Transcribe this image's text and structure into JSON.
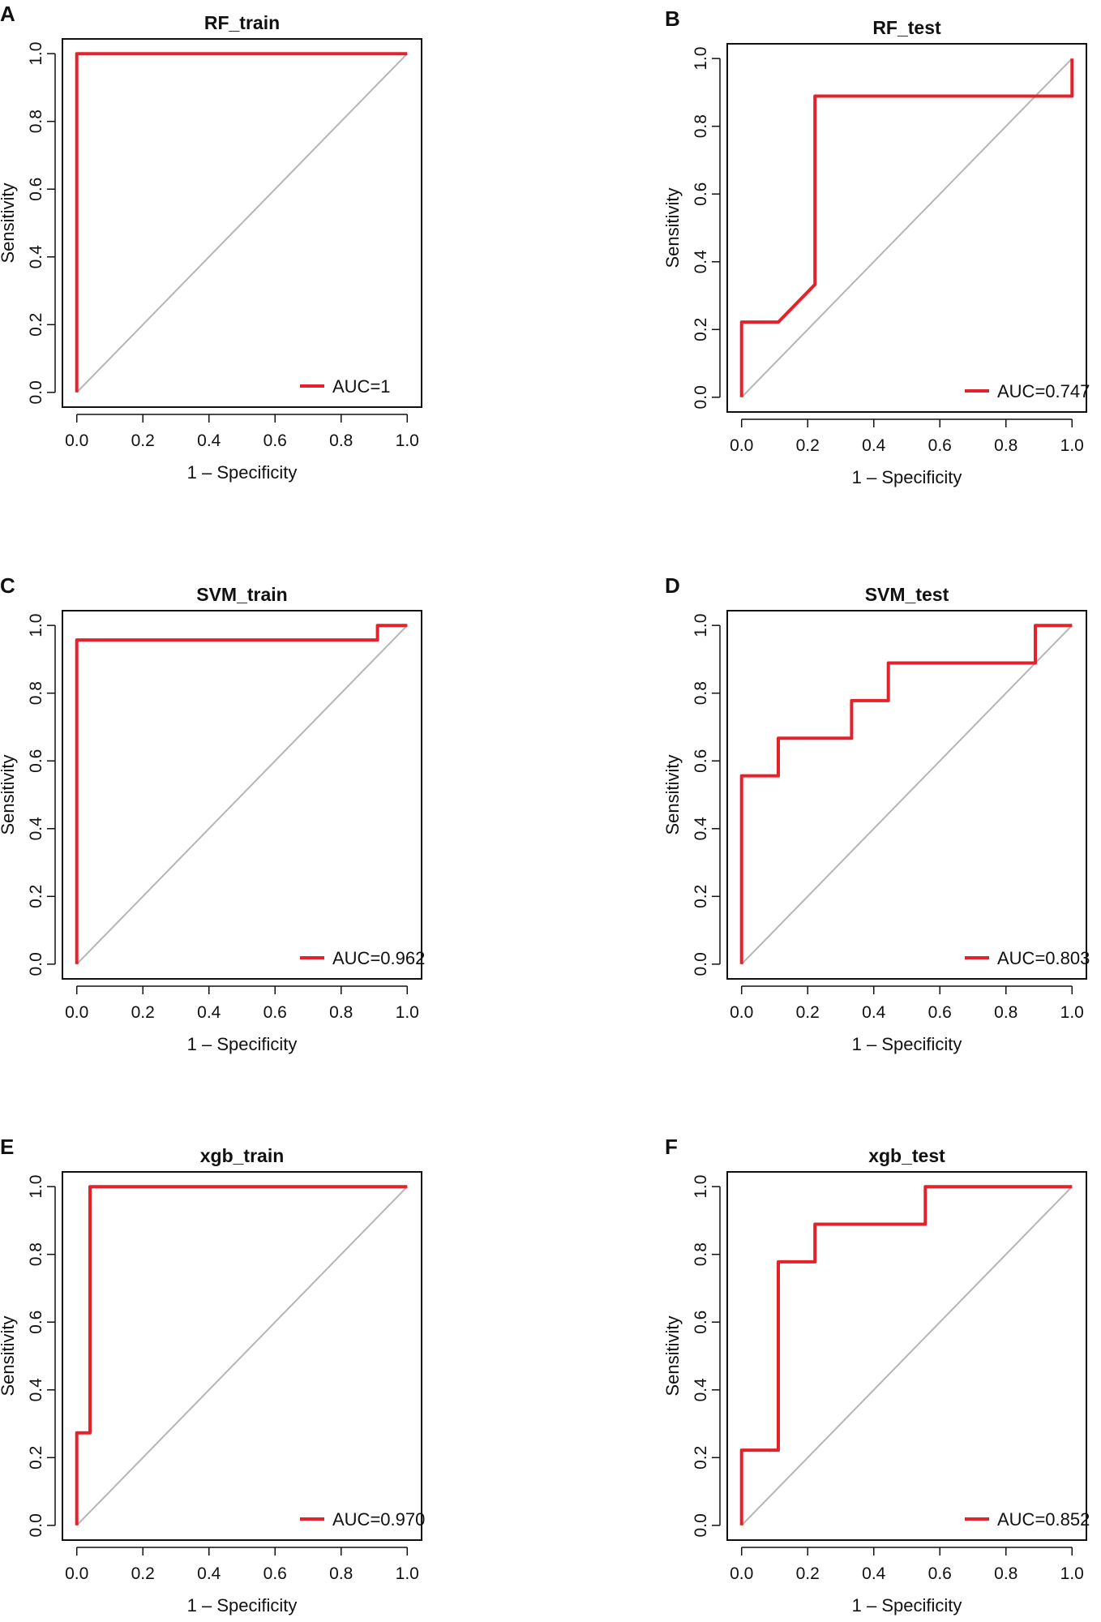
{
  "colors": {
    "roc": "#e3222b",
    "diagonal": "#b5b5b5",
    "axis": "#111111"
  },
  "chart_data": [
    {
      "panel": "A",
      "type": "line",
      "title": "RF_train",
      "xlabel": "1 – Specificity",
      "ylabel": "Sensitivity",
      "xlim": [
        0,
        1
      ],
      "ylim": [
        0,
        1
      ],
      "xticks": [
        "0.0",
        "0.2",
        "0.4",
        "0.6",
        "0.8",
        "1.0"
      ],
      "yticks": [
        "0.0",
        "0.2",
        "0.4",
        "0.6",
        "0.8",
        "1.0"
      ],
      "series": [
        {
          "name": "AUC=1",
          "x": [
            0,
            0,
            1
          ],
          "y": [
            0,
            1,
            1
          ]
        }
      ],
      "legend": "bottom-right"
    },
    {
      "panel": "B",
      "type": "line",
      "title": "RF_test",
      "xlabel": "1 – Specificity",
      "ylabel": "Sensitivity",
      "xlim": [
        0,
        1
      ],
      "ylim": [
        0,
        1
      ],
      "xticks": [
        "0.0",
        "0.2",
        "0.4",
        "0.6",
        "0.8",
        "1.0"
      ],
      "yticks": [
        "0.0",
        "0.2",
        "0.4",
        "0.6",
        "0.8",
        "1.0"
      ],
      "series": [
        {
          "name": "AUC=0.747",
          "x": [
            0,
            0,
            0.111,
            0.222,
            0.222,
            1,
            1
          ],
          "y": [
            0,
            0.222,
            0.222,
            0.333,
            0.889,
            0.889,
            1
          ]
        }
      ],
      "legend": "bottom-right"
    },
    {
      "panel": "C",
      "type": "line",
      "title": "SVM_train",
      "xlabel": "1 – Specificity",
      "ylabel": "Sensitivity",
      "xlim": [
        0,
        1
      ],
      "ylim": [
        0,
        1
      ],
      "xticks": [
        "0.0",
        "0.2",
        "0.4",
        "0.6",
        "0.8",
        "1.0"
      ],
      "yticks": [
        "0.0",
        "0.2",
        "0.4",
        "0.6",
        "0.8",
        "1.0"
      ],
      "series": [
        {
          "name": "AUC=0.962",
          "x": [
            0,
            0,
            0.91,
            0.91,
            1
          ],
          "y": [
            0,
            0.957,
            0.957,
            1,
            1
          ]
        }
      ],
      "legend": "bottom-right"
    },
    {
      "panel": "D",
      "type": "line",
      "title": "SVM_test",
      "xlabel": "1 – Specificity",
      "ylabel": "Sensitivity",
      "xlim": [
        0,
        1
      ],
      "ylim": [
        0,
        1
      ],
      "xticks": [
        "0.0",
        "0.2",
        "0.4",
        "0.6",
        "0.8",
        "1.0"
      ],
      "yticks": [
        "0.0",
        "0.2",
        "0.4",
        "0.6",
        "0.8",
        "1.0"
      ],
      "series": [
        {
          "name": "AUC=0.803",
          "x": [
            0,
            0,
            0.111,
            0.111,
            0.333,
            0.333,
            0.444,
            0.444,
            0.889,
            0.889,
            1
          ],
          "y": [
            0,
            0.556,
            0.556,
            0.667,
            0.667,
            0.778,
            0.778,
            0.889,
            0.889,
            1,
            1
          ]
        }
      ],
      "legend": "bottom-right"
    },
    {
      "panel": "E",
      "type": "line",
      "title": "xgb_train",
      "xlabel": "1 – Specificity",
      "ylabel": "Sensitivity",
      "xlim": [
        0,
        1
      ],
      "ylim": [
        0,
        1
      ],
      "xticks": [
        "0.0",
        "0.2",
        "0.4",
        "0.6",
        "0.8",
        "1.0"
      ],
      "yticks": [
        "0.0",
        "0.2",
        "0.4",
        "0.6",
        "0.8",
        "1.0"
      ],
      "series": [
        {
          "name": "AUC=0.970",
          "x": [
            0,
            0,
            0.04,
            0.04,
            1
          ],
          "y": [
            0,
            0.273,
            0.273,
            1,
            1
          ]
        }
      ],
      "legend": "bottom-right"
    },
    {
      "panel": "F",
      "type": "line",
      "title": "xgb_test",
      "xlabel": "1 – Specificity",
      "ylabel": "Sensitivity",
      "xlim": [
        0,
        1
      ],
      "ylim": [
        0,
        1
      ],
      "xticks": [
        "0.0",
        "0.2",
        "0.4",
        "0.6",
        "0.8",
        "1.0"
      ],
      "yticks": [
        "0.0",
        "0.2",
        "0.4",
        "0.6",
        "0.8",
        "1.0"
      ],
      "series": [
        {
          "name": "AUC=0.852",
          "x": [
            0,
            0,
            0.111,
            0.111,
            0.222,
            0.222,
            0.556,
            0.556,
            1
          ],
          "y": [
            0,
            0.222,
            0.222,
            0.778,
            0.778,
            0.889,
            0.889,
            1,
            1
          ]
        }
      ],
      "legend": "bottom-right"
    }
  ]
}
